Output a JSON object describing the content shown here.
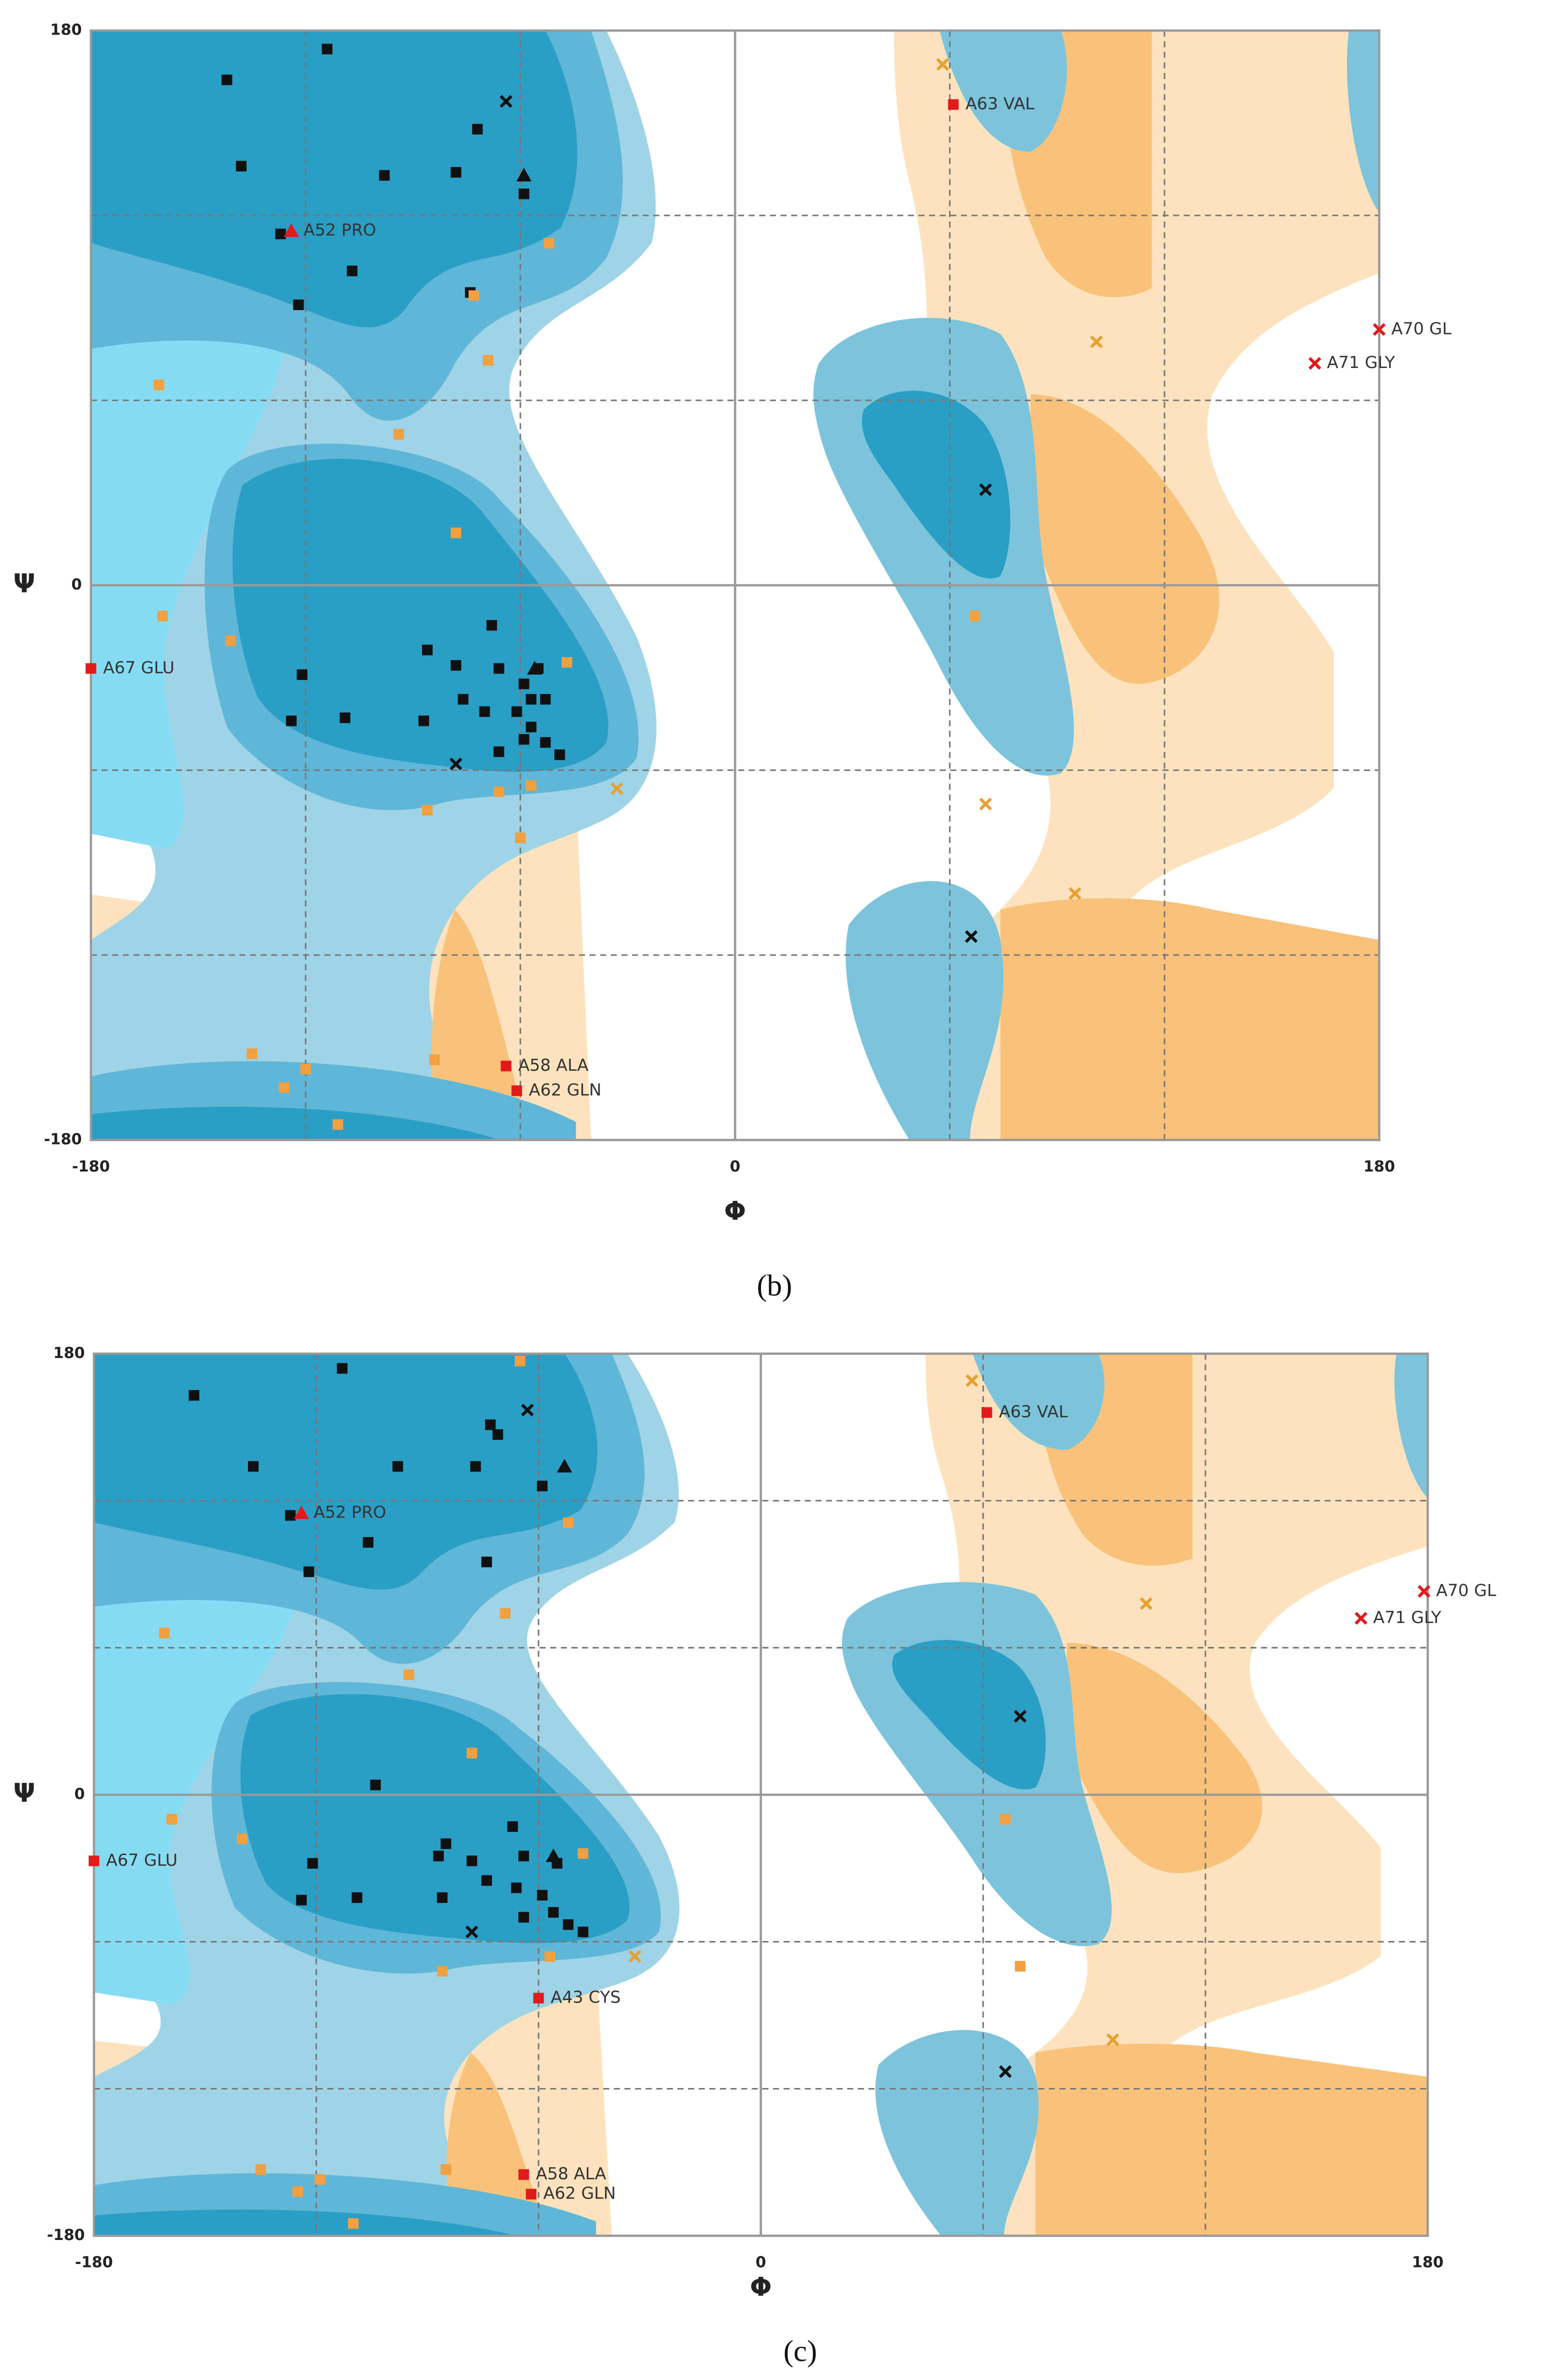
{
  "chart_data": [
    {
      "type": "scatter",
      "caption": "(b)",
      "xlabel": "Φ",
      "ylabel": "Ψ",
      "xlim": [
        -180,
        180
      ],
      "ylim": [
        -180,
        180
      ],
      "xticks": [
        -180,
        0,
        180
      ],
      "yticks": [
        -180,
        0,
        180
      ],
      "grid": true,
      "dashed_grid": [
        -120,
        -60,
        60,
        120
      ],
      "series": [
        {
          "color": "#111111",
          "marker": "square",
          "x": [
            -142,
            -114,
            -138,
            -98,
            -78,
            -72,
            -59,
            -127,
            -107,
            -122,
            -74,
            -68,
            -86,
            -78,
            -66,
            -55,
            -59,
            -121,
            -57,
            -53,
            -124,
            -109,
            -87,
            -76,
            -70,
            -61,
            -57,
            -66,
            -53,
            -49,
            -59
          ],
          "y": [
            164,
            174,
            136,
            133,
            134,
            148,
            127,
            114,
            102,
            91,
            95,
            -13,
            -21,
            -26,
            -27,
            -27,
            -32,
            -29,
            -37,
            -37,
            -44,
            -43,
            -44,
            -37,
            -41,
            -41,
            -46,
            -54,
            -51,
            -55,
            -50
          ]
        },
        {
          "color": "#111111",
          "marker": "triangle",
          "x": [
            -59,
            -56
          ],
          "y": [
            133,
            -27
          ]
        },
        {
          "color": "#111111",
          "marker": "cross",
          "x": [
            -64,
            -78,
            70,
            66
          ],
          "y": [
            157,
            -58,
            31,
            -114
          ]
        },
        {
          "color": "#f0a040",
          "marker": "square",
          "x": [
            -52,
            -73,
            -69,
            -94,
            -161,
            -78,
            -160,
            -141,
            -47,
            -57,
            -66,
            -86,
            -60,
            -135,
            -120,
            -126,
            -84,
            -111,
            67
          ],
          "y": [
            111,
            94,
            73,
            49,
            65,
            17,
            -10,
            -18,
            -25,
            -65,
            -67,
            -73,
            -82,
            -152,
            -157,
            -163,
            -154,
            -175,
            -10
          ]
        },
        {
          "color": "#e8a030",
          "marker": "cross",
          "x": [
            58,
            101,
            -33,
            70,
            95
          ],
          "y": [
            169,
            79,
            -66,
            -71,
            -100
          ]
        },
        {
          "color": "#e31a1c",
          "marker": "square",
          "x": [
            61,
            -180,
            -64,
            -61
          ],
          "y": [
            156,
            -27,
            -156,
            -164
          ],
          "labels": [
            "A63 VAL",
            "A67 GLU",
            "A58 ALA",
            "A62 GLN"
          ]
        },
        {
          "color": "#e31a1c",
          "marker": "cross",
          "x": [
            180,
            162
          ],
          "y": [
            83,
            72
          ],
          "labels": [
            "A70 GL",
            "A71 GLY"
          ]
        },
        {
          "color": "#e31a1c",
          "marker": "triangle",
          "x": [
            -124
          ],
          "y": [
            115
          ],
          "labels": [
            "A52 PRO"
          ]
        }
      ]
    },
    {
      "type": "scatter",
      "caption": "(c)",
      "xlabel": "Φ",
      "ylabel": "Ψ",
      "xlim": [
        -180,
        180
      ],
      "ylim": [
        -180,
        180
      ],
      "xticks": [
        -180,
        0,
        180
      ],
      "yticks": [
        -180,
        0,
        180
      ],
      "grid": true,
      "dashed_grid": [
        -120,
        -60,
        60,
        120
      ],
      "series": [
        {
          "color": "#111111",
          "marker": "square",
          "x": [
            -153,
            -113,
            -137,
            -98,
            -77,
            -73,
            -71,
            -59,
            -127,
            -106,
            -122,
            -74,
            -104,
            -67,
            -85,
            -78,
            -87,
            -64,
            -55,
            -121,
            -59,
            -124,
            -109,
            -86,
            -74,
            -66,
            -64,
            -52,
            -48,
            -56
          ],
          "y": [
            163,
            174,
            134,
            134,
            134,
            151,
            147,
            126,
            114,
            103,
            91,
            95,
            4,
            -13,
            -20,
            -27,
            -25,
            -25,
            -28,
            -28,
            -41,
            -43,
            -42,
            -42,
            -35,
            -38,
            -50,
            -53,
            -56,
            -48
          ]
        },
        {
          "color": "#111111",
          "marker": "triangle",
          "x": [
            -53,
            -56
          ],
          "y": [
            134,
            -25
          ]
        },
        {
          "color": "#111111",
          "marker": "cross",
          "x": [
            -63,
            -78,
            70,
            66
          ],
          "y": [
            157,
            -56,
            32,
            -113
          ]
        },
        {
          "color": "#f0a040",
          "marker": "square",
          "x": [
            -52,
            -69,
            -95,
            -161,
            -78,
            -159,
            -140,
            -48,
            -57,
            -86,
            -135,
            -119,
            -125,
            -85,
            -110,
            66,
            -65,
            70
          ],
          "y": [
            111,
            74,
            49,
            66,
            17,
            -10,
            -18,
            -24,
            -66,
            -72,
            -153,
            -157,
            -162,
            -153,
            -175,
            -10,
            177,
            -70
          ]
        },
        {
          "color": "#e8a030",
          "marker": "cross",
          "x": [
            57,
            104,
            -34,
            95
          ],
          "y": [
            169,
            78,
            -66,
            -100
          ]
        },
        {
          "color": "#e31a1c",
          "marker": "square",
          "x": [
            61,
            -180,
            -60,
            -64,
            -62
          ],
          "y": [
            156,
            -27,
            -83,
            -155,
            -163
          ],
          "labels": [
            "A63 VAL",
            "A67 GLU",
            "A43 CYS",
            "A58 ALA",
            "A62 GLN"
          ]
        },
        {
          "color": "#e31a1c",
          "marker": "cross",
          "x": [
            179,
            162
          ],
          "y": [
            83,
            72
          ],
          "labels": [
            "A70 GL",
            "A71 GLY"
          ]
        },
        {
          "color": "#e31a1c",
          "marker": "triangle",
          "x": [
            -124
          ],
          "y": [
            115
          ],
          "labels": [
            "A52 PRO"
          ]
        }
      ]
    }
  ]
}
